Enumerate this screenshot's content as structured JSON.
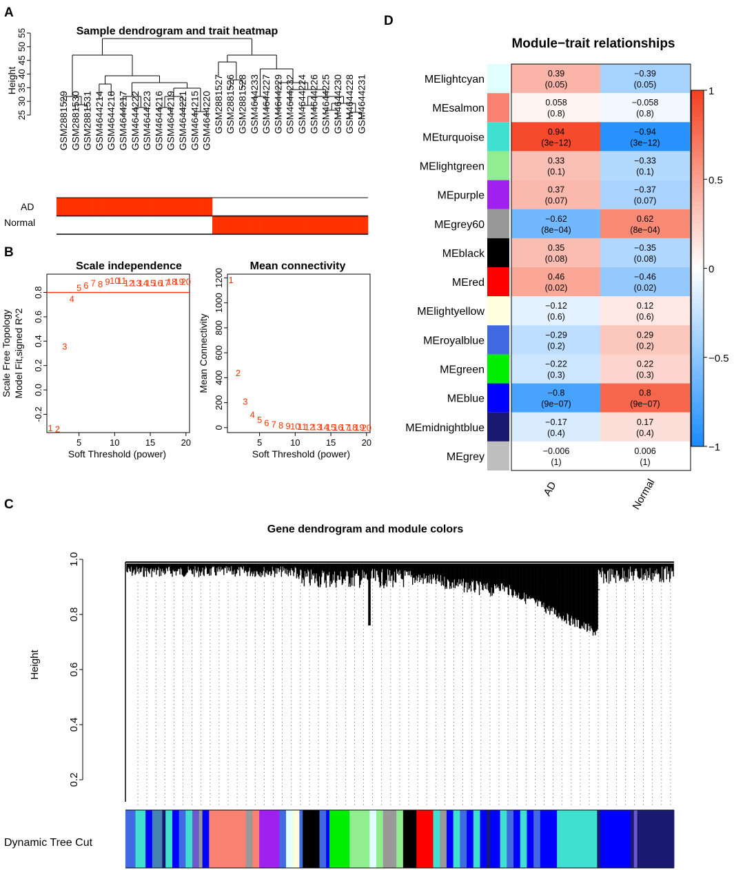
{
  "panel_labels": {
    "A": "A",
    "B": "B",
    "C": "C",
    "D": "D"
  },
  "colors": {
    "red": "#ff3300",
    "text": "#000000",
    "legend_high": "#f4401f",
    "legend_low": "#1a8cff"
  },
  "chart_data": [
    {
      "panel": "A",
      "type": "dendrogram",
      "title": "Sample dendrogram and trait heatmap",
      "ylabel": "Height",
      "yticks": [
        25,
        30,
        35,
        40,
        45,
        50,
        55
      ],
      "ylim": [
        25,
        55
      ],
      "samples": [
        "GSM2881529",
        "GSM2881530",
        "GSM2881531",
        "GSM4644214",
        "GSM4644218",
        "GSM4644217",
        "GSM4644222",
        "GSM4644223",
        "GSM4644216",
        "GSM4644219",
        "GSM4644221",
        "GSM4644215",
        "GSM4644220",
        "GSM2881527",
        "GSM2881526",
        "GSM2881528",
        "GSM4644233",
        "GSM4644227",
        "GSM4644229",
        "GSM4644232",
        "GSM4644224",
        "GSM4644226",
        "GSM4644225",
        "GSM4644230",
        "GSM4644228",
        "GSM4644231"
      ],
      "traits": [
        "AD",
        "Normal"
      ],
      "trait_AD": [
        1,
        1,
        1,
        1,
        1,
        1,
        1,
        1,
        1,
        1,
        1,
        1,
        1,
        0,
        0,
        0,
        0,
        0,
        0,
        0,
        0,
        0,
        0,
        0,
        0,
        0
      ],
      "trait_Normal": [
        0,
        0,
        0,
        0,
        0,
        0,
        0,
        0,
        0,
        0,
        0,
        0,
        0,
        1,
        1,
        1,
        1,
        1,
        1,
        1,
        1,
        1,
        1,
        1,
        1,
        1
      ]
    },
    {
      "panel": "B-left",
      "type": "scatter",
      "title": "Scale independence",
      "xlabel": "Soft Threshold (power)",
      "ylabel": "Scale Free Topology Model Fit,signed R^2",
      "xlim": [
        0.5,
        20.5
      ],
      "ylim": [
        -0.35,
        0.95
      ],
      "xticks": [
        5,
        10,
        15,
        20
      ],
      "yticks": [
        -0.2,
        0.0,
        0.2,
        0.4,
        0.6,
        0.8
      ],
      "cutoff": 0.8,
      "x": [
        1,
        2,
        3,
        4,
        5,
        6,
        7,
        8,
        9,
        10,
        11,
        12,
        13,
        14,
        15,
        16,
        17,
        18,
        19,
        20
      ],
      "y": [
        -0.31,
        -0.32,
        0.36,
        0.75,
        0.84,
        0.86,
        0.88,
        0.87,
        0.89,
        0.9,
        0.9,
        0.88,
        0.88,
        0.88,
        0.88,
        0.88,
        0.88,
        0.89,
        0.89,
        0.89
      ]
    },
    {
      "panel": "B-right",
      "type": "scatter",
      "title": "Mean connectivity",
      "xlabel": "Soft Threshold (power)",
      "ylabel": "Mean Connectivity",
      "xlim": [
        0.5,
        20.5
      ],
      "ylim": [
        -40,
        1230
      ],
      "xticks": [
        5,
        10,
        15,
        20
      ],
      "yticks": [
        0,
        200,
        400,
        600,
        800,
        1000,
        1200
      ],
      "x": [
        1,
        2,
        3,
        4,
        5,
        6,
        7,
        8,
        9,
        10,
        11,
        12,
        13,
        14,
        15,
        16,
        17,
        18,
        19,
        20
      ],
      "y": [
        1185,
        440,
        210,
        105,
        65,
        40,
        30,
        22,
        16,
        12,
        10,
        8,
        7,
        6,
        5,
        4,
        4,
        3,
        3,
        2
      ]
    },
    {
      "panel": "D",
      "type": "heatmap",
      "title": "Module−trait relationships",
      "columns": [
        "AD",
        "Normal"
      ],
      "rows": [
        {
          "name": "MElightcyan",
          "swatch": "#e0ffff",
          "ad": 0.39,
          "ad_label": "0.39",
          "ad_p": "(0.05)",
          "normal": -0.39,
          "normal_label": "−0.39",
          "normal_p": "(0.05)"
        },
        {
          "name": "MEsalmon",
          "swatch": "#fa8072",
          "ad": 0.058,
          "ad_label": "0.058",
          "ad_p": "(0.8)",
          "normal": -0.058,
          "normal_label": "−0.058",
          "normal_p": "(0.8)"
        },
        {
          "name": "MEturquoise",
          "swatch": "#40e0d0",
          "ad": 0.94,
          "ad_label": "0.94",
          "ad_p": "(3e−12)",
          "normal": -0.94,
          "normal_label": "−0.94",
          "normal_p": "(3e−12)"
        },
        {
          "name": "MElightgreen",
          "swatch": "#90ee90",
          "ad": 0.33,
          "ad_label": "0.33",
          "ad_p": "(0.1)",
          "normal": -0.33,
          "normal_label": "−0.33",
          "normal_p": "(0.1)"
        },
        {
          "name": "MEpurple",
          "swatch": "#a020f0",
          "ad": 0.37,
          "ad_label": "0.37",
          "ad_p": "(0.07)",
          "normal": -0.37,
          "normal_label": "−0.37",
          "normal_p": "(0.07)"
        },
        {
          "name": "MEgrey60",
          "swatch": "#999999",
          "ad": -0.62,
          "ad_label": "−0.62",
          "ad_p": "(8e−04)",
          "normal": 0.62,
          "normal_label": "0.62",
          "normal_p": "(8e−04)"
        },
        {
          "name": "MEblack",
          "swatch": "#000000",
          "ad": 0.35,
          "ad_label": "0.35",
          "ad_p": "(0.08)",
          "normal": -0.35,
          "normal_label": "−0.35",
          "normal_p": "(0.08)"
        },
        {
          "name": "MEred",
          "swatch": "#ff0000",
          "ad": 0.46,
          "ad_label": "0.46",
          "ad_p": "(0.02)",
          "normal": -0.46,
          "normal_label": "−0.46",
          "normal_p": "(0.02)"
        },
        {
          "name": "MElightyellow",
          "swatch": "#ffffe0",
          "ad": -0.12,
          "ad_label": "−0.12",
          "ad_p": "(0.6)",
          "normal": 0.12,
          "normal_label": "0.12",
          "normal_p": "(0.6)"
        },
        {
          "name": "MEroyalblue",
          "swatch": "#4169e1",
          "ad": -0.29,
          "ad_label": "−0.29",
          "ad_p": "(0.2)",
          "normal": 0.29,
          "normal_label": "0.29",
          "normal_p": "(0.2)"
        },
        {
          "name": "MEgreen",
          "swatch": "#00ee00",
          "ad": -0.22,
          "ad_label": "−0.22",
          "ad_p": "(0.3)",
          "normal": 0.22,
          "normal_label": "0.22",
          "normal_p": "(0.3)"
        },
        {
          "name": "MEblue",
          "swatch": "#0000ff",
          "ad": -0.8,
          "ad_label": "−0.8",
          "ad_p": "(9e−07)",
          "normal": 0.8,
          "normal_label": "0.8",
          "normal_p": "(9e−07)"
        },
        {
          "name": "MEmidnightblue",
          "swatch": "#191970",
          "ad": -0.17,
          "ad_label": "−0.17",
          "ad_p": "(0.4)",
          "normal": 0.17,
          "normal_label": "0.17",
          "normal_p": "(0.4)"
        },
        {
          "name": "MEgrey",
          "swatch": "#bebebe",
          "ad": -0.006,
          "ad_label": "−0.006",
          "ad_p": "(1)",
          "normal": 0.006,
          "normal_label": "0.006",
          "normal_p": "(1)"
        }
      ],
      "legend_ticks": [
        {
          "v": 1,
          "label": "1"
        },
        {
          "v": 0.5,
          "label": "0.5"
        },
        {
          "v": 0,
          "label": "0"
        },
        {
          "v": -0.5,
          "label": "−0.5"
        },
        {
          "v": -1,
          "label": "−1"
        }
      ]
    },
    {
      "panel": "C",
      "type": "dendrogram",
      "title": "Gene dendrogram and module colors",
      "ylabel": "Height",
      "ylim": [
        0.1,
        1.0
      ],
      "yticks": [
        {
          "v": 1.0,
          "label": "1.0"
        },
        {
          "v": 0.8,
          "label": "0.8"
        },
        {
          "v": 0.6,
          "label": "0.6"
        },
        {
          "v": 0.4,
          "label": "0.4"
        },
        {
          "v": 0.2,
          "label": "0.2"
        }
      ],
      "color_bar_label": "Dynamic Tree Cut",
      "module_segments": [
        {
          "color": "#4169e1",
          "w": 3
        },
        {
          "color": "#40e0d0",
          "w": 3
        },
        {
          "color": "#0000ff",
          "w": 2
        },
        {
          "color": "#4682b4",
          "w": 3
        },
        {
          "color": "#191970",
          "w": 1
        },
        {
          "color": "#40e0d0",
          "w": 2
        },
        {
          "color": "#0000ff",
          "w": 2
        },
        {
          "color": "#4169e1",
          "w": 2
        },
        {
          "color": "#40e0d0",
          "w": 2
        },
        {
          "color": "#6a5acd",
          "w": 2
        },
        {
          "color": "#999999",
          "w": 1
        },
        {
          "color": "#0000ff",
          "w": 2
        },
        {
          "color": "#fa8072",
          "w": 11
        },
        {
          "color": "#999999",
          "w": 2
        },
        {
          "color": "#fa8072",
          "w": 2
        },
        {
          "color": "#a020f0",
          "w": 6
        },
        {
          "color": "#4169e1",
          "w": 2
        },
        {
          "color": "#e0ffff",
          "w": 2
        },
        {
          "color": "#ffffe0",
          "w": 2
        },
        {
          "color": "#4169e1",
          "w": 1
        },
        {
          "color": "#000000",
          "w": 5
        },
        {
          "color": "#4169e1",
          "w": 2
        },
        {
          "color": "#0000ff",
          "w": 1
        },
        {
          "color": "#00ee00",
          "w": 6
        },
        {
          "color": "#90ee90",
          "w": 6
        },
        {
          "color": "#e0ffff",
          "w": 2
        },
        {
          "color": "#90ee90",
          "w": 2
        },
        {
          "color": "#999999",
          "w": 4
        },
        {
          "color": "#90ee90",
          "w": 2
        },
        {
          "color": "#000000",
          "w": 4
        },
        {
          "color": "#ff0000",
          "w": 5
        },
        {
          "color": "#40e0d0",
          "w": 2
        },
        {
          "color": "#999999",
          "w": 2
        },
        {
          "color": "#0000ff",
          "w": 2
        },
        {
          "color": "#40e0d0",
          "w": 2
        },
        {
          "color": "#4169e1",
          "w": 2
        },
        {
          "color": "#0000ff",
          "w": 2
        },
        {
          "color": "#40e0d0",
          "w": 2
        },
        {
          "color": "#0000ff",
          "w": 2
        },
        {
          "color": "#191970",
          "w": 1
        },
        {
          "color": "#0000ff",
          "w": 3
        },
        {
          "color": "#40e0d0",
          "w": 2
        },
        {
          "color": "#4169e1",
          "w": 2
        },
        {
          "color": "#0000ff",
          "w": 2
        },
        {
          "color": "#40e0d0",
          "w": 2
        },
        {
          "color": "#0000ff",
          "w": 2
        },
        {
          "color": "#4169e1",
          "w": 2
        },
        {
          "color": "#0000ff",
          "w": 5
        },
        {
          "color": "#40e0d0",
          "w": 12
        },
        {
          "color": "#191970",
          "w": 1
        },
        {
          "color": "#0000ff",
          "w": 9
        },
        {
          "color": "#191970",
          "w": 1
        },
        {
          "color": "#6a5acd",
          "w": 1
        },
        {
          "color": "#191970",
          "w": 11
        }
      ]
    }
  ]
}
